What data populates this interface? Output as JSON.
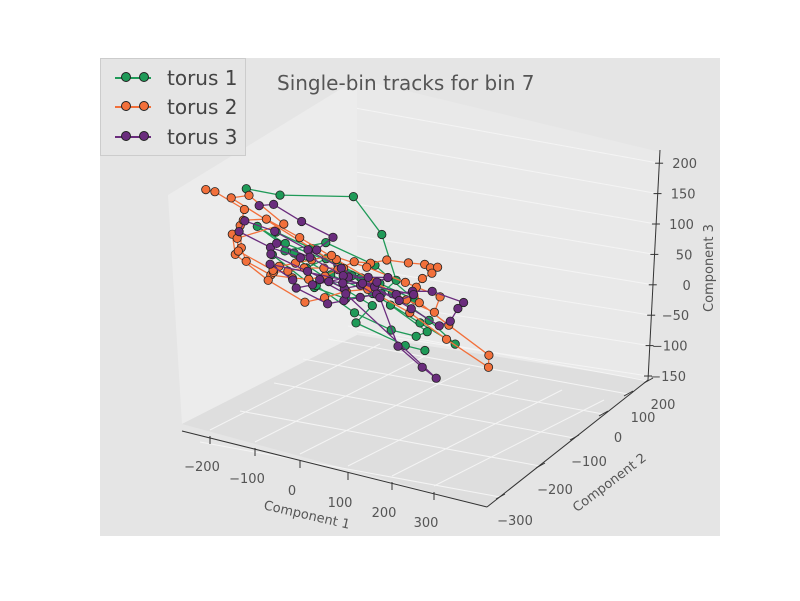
{
  "chart_data": {
    "type": "scatter",
    "subtype": "3d-line-scatter",
    "title": "Single-bin tracks for bin 7",
    "xlabel": "Component 1",
    "ylabel": "Component 2",
    "zlabel": "Component 3",
    "xlim": [
      -270,
      370
    ],
    "ylim": [
      -320,
      270
    ],
    "zlim": [
      -160,
      230
    ],
    "x_ticks": [
      -200,
      -100,
      0,
      100,
      200,
      300
    ],
    "y_ticks": [
      -300,
      -200,
      -100,
      0,
      100,
      200
    ],
    "z_ticks": [
      -150,
      -100,
      -50,
      0,
      50,
      100,
      150,
      200
    ],
    "x_tick_labels": [
      "−200",
      "−100",
      "0",
      "100",
      "200",
      "300"
    ],
    "y_tick_labels": [
      "−300",
      "−200",
      "−100",
      "0",
      "100",
      "200"
    ],
    "z_tick_labels": [
      "−150",
      "−100",
      "−50",
      "0",
      "50",
      "100",
      "150",
      "200"
    ],
    "legend_position": "top-left",
    "grid": true,
    "background": "#e5e5e5",
    "series": [
      {
        "name": "torus 1",
        "color": "#1f9a58",
        "points": [
          [
            -150,
            30,
            160
          ],
          [
            -80,
            40,
            170
          ],
          [
            20,
            -20,
            180
          ],
          [
            80,
            -10,
            120
          ],
          [
            120,
            10,
            40
          ],
          [
            60,
            -40,
            -20
          ],
          [
            -20,
            -60,
            -60
          ],
          [
            -60,
            -30,
            -40
          ],
          [
            -120,
            0,
            20
          ],
          [
            -100,
            20,
            80
          ],
          [
            -40,
            10,
            60
          ],
          [
            30,
            0,
            20
          ],
          [
            90,
            -20,
            -30
          ],
          [
            140,
            -50,
            -80
          ],
          [
            100,
            -80,
            -110
          ],
          [
            40,
            -100,
            -120
          ],
          [
            -10,
            -70,
            -90
          ],
          [
            -50,
            -20,
            -30
          ],
          [
            -30,
            40,
            30
          ],
          [
            20,
            60,
            70
          ],
          [
            60,
            20,
            30
          ],
          [
            100,
            -10,
            0
          ],
          [
            150,
            -40,
            -50
          ],
          [
            180,
            -70,
            -100
          ],
          [
            120,
            -60,
            -70
          ],
          [
            50,
            -30,
            -20
          ],
          [
            -10,
            0,
            10
          ],
          [
            -60,
            30,
            50
          ],
          [
            -110,
            60,
            100
          ],
          [
            -70,
            40,
            70
          ],
          [
            10,
            10,
            40
          ],
          [
            70,
            -20,
            10
          ],
          [
            130,
            -30,
            -10
          ],
          [
            80,
            10,
            60
          ],
          [
            0,
            30,
            90
          ],
          [
            -90,
            10,
            40
          ],
          [
            -40,
            -40,
            -20
          ],
          [
            30,
            -60,
            -60
          ],
          [
            -20,
            -90,
            -120
          ],
          [
            60,
            -110,
            -150
          ],
          [
            110,
            -90,
            -140
          ]
        ]
      },
      {
        "name": "torus 2",
        "color": "#f2703b",
        "points": [
          [
            -220,
            40,
            140
          ],
          [
            -190,
            60,
            150
          ],
          [
            -160,
            20,
            110
          ],
          [
            -200,
            -30,
            50
          ],
          [
            -230,
            -80,
            -20
          ],
          [
            -240,
            -110,
            -60
          ],
          [
            -200,
            -120,
            -80
          ],
          [
            -140,
            -90,
            -60
          ],
          [
            -90,
            -60,
            -40
          ],
          [
            -40,
            -30,
            -10
          ],
          [
            10,
            10,
            30
          ],
          [
            60,
            40,
            70
          ],
          [
            110,
            70,
            90
          ],
          [
            160,
            100,
            120
          ],
          [
            220,
            130,
            140
          ],
          [
            270,
            160,
            160
          ],
          [
            300,
            190,
            170
          ],
          [
            320,
            200,
            180
          ],
          [
            290,
            170,
            150
          ],
          [
            240,
            120,
            110
          ],
          [
            190,
            60,
            60
          ],
          [
            170,
            20,
            10
          ],
          [
            200,
            -20,
            -40
          ],
          [
            250,
            -60,
            -100
          ],
          [
            230,
            -90,
            -140
          ],
          [
            170,
            -60,
            -90
          ],
          [
            120,
            -30,
            -40
          ],
          [
            60,
            0,
            0
          ],
          [
            0,
            -30,
            -30
          ],
          [
            -60,
            -60,
            -70
          ],
          [
            -110,
            -80,
            -100
          ],
          [
            -160,
            -50,
            -60
          ],
          [
            -190,
            0,
            0
          ],
          [
            -170,
            40,
            60
          ],
          [
            -130,
            70,
            110
          ],
          [
            -80,
            80,
            130
          ],
          [
            -30,
            60,
            100
          ],
          [
            20,
            30,
            60
          ],
          [
            70,
            0,
            20
          ],
          [
            120,
            -20,
            -10
          ],
          [
            160,
            -40,
            -30
          ],
          [
            190,
            -10,
            20
          ],
          [
            150,
            30,
            50
          ],
          [
            90,
            50,
            70
          ],
          [
            30,
            60,
            80
          ],
          [
            -20,
            40,
            50
          ],
          [
            -70,
            10,
            20
          ],
          [
            -120,
            -20,
            -10
          ],
          [
            -150,
            -50,
            -40
          ],
          [
            -110,
            -30,
            -20
          ],
          [
            -60,
            0,
            10
          ],
          [
            -10,
            20,
            30
          ],
          [
            40,
            40,
            50
          ],
          [
            -140,
            90,
            160
          ],
          [
            -100,
            100,
            180
          ],
          [
            -60,
            60,
            120
          ],
          [
            -180,
            10,
            40
          ],
          [
            -210,
            -40,
            -10
          ],
          [
            -170,
            -80,
            -50
          ]
        ]
      },
      {
        "name": "torus 3",
        "color": "#6a2c7d",
        "points": [
          [
            -100,
            70,
            150
          ],
          [
            -60,
            90,
            170
          ],
          [
            -20,
            70,
            140
          ],
          [
            20,
            40,
            110
          ],
          [
            -30,
            10,
            60
          ],
          [
            -80,
            -20,
            20
          ],
          [
            -130,
            -10,
            30
          ],
          [
            -170,
            20,
            60
          ],
          [
            -140,
            50,
            100
          ],
          [
            -90,
            40,
            90
          ],
          [
            -40,
            20,
            60
          ],
          [
            10,
            0,
            30
          ],
          [
            60,
            -20,
            0
          ],
          [
            110,
            -50,
            -40
          ],
          [
            150,
            -70,
            -70
          ],
          [
            190,
            -40,
            -40
          ],
          [
            230,
            0,
            10
          ],
          [
            260,
            30,
            40
          ],
          [
            220,
            60,
            60
          ],
          [
            170,
            40,
            40
          ],
          [
            120,
            10,
            10
          ],
          [
            70,
            -10,
            -10
          ],
          [
            20,
            -40,
            -40
          ],
          [
            -30,
            -70,
            -70
          ],
          [
            -80,
            -100,
            -100
          ],
          [
            -120,
            -70,
            -70
          ],
          [
            -70,
            -40,
            -40
          ],
          [
            -20,
            -10,
            -10
          ],
          [
            30,
            10,
            20
          ],
          [
            80,
            30,
            40
          ],
          [
            130,
            50,
            60
          ],
          [
            90,
            20,
            30
          ],
          [
            40,
            -10,
            0
          ],
          [
            -10,
            -40,
            -30
          ],
          [
            -60,
            -10,
            0
          ],
          [
            -110,
            20,
            30
          ],
          [
            -80,
            50,
            70
          ],
          [
            -30,
            30,
            50
          ],
          [
            20,
            10,
            20
          ],
          [
            70,
            -20,
            -20
          ],
          [
            40,
            -120,
            -160
          ],
          [
            60,
            -160,
            -210
          ],
          [
            80,
            -170,
            -230
          ],
          [
            -20,
            -60,
            -50
          ],
          [
            -50,
            -30,
            -20
          ],
          [
            0,
            -20,
            -10
          ],
          [
            50,
            0,
            10
          ],
          [
            100,
            -30,
            -20
          ],
          [
            140,
            -10,
            10
          ],
          [
            -150,
            -40,
            -20
          ],
          [
            -120,
            -60,
            -50
          ]
        ]
      }
    ]
  }
}
